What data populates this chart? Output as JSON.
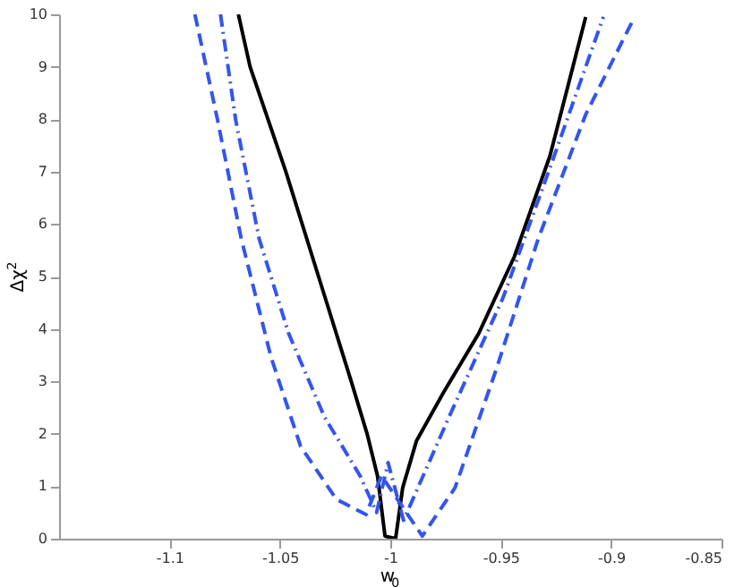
{
  "chart_data": {
    "type": "line",
    "xlabel": "w$_{0}$",
    "ylabel": "Δχ$^{2}$",
    "xlim": [
      -1.15,
      -0.85
    ],
    "ylim": [
      0,
      10
    ],
    "xticks": [
      {
        "value": -1.1,
        "label": "-1.1"
      },
      {
        "value": -1.05,
        "label": "-1.05"
      },
      {
        "value": -1,
        "label": "-1"
      },
      {
        "value": -0.95,
        "label": "-0.95"
      },
      {
        "value": -0.9,
        "label": "-0.9"
      },
      {
        "value": -0.85,
        "label": "-0.85"
      }
    ],
    "yticks": [
      0,
      1,
      2,
      3,
      4,
      5,
      6,
      7,
      8,
      9,
      10
    ],
    "grid": false,
    "series": [
      {
        "color": "#000000",
        "line_style": "solid",
        "x": [
          -1.0688,
          -1.0635,
          -1.0473,
          -1.0325,
          -1.0177,
          -1.0105,
          -1.0058,
          -1.0024,
          -0.9976,
          -0.9944,
          -0.9881,
          -0.976,
          -0.96,
          -0.9438,
          -0.9277,
          -0.9115
        ],
        "values": [
          10,
          9,
          7,
          5,
          3,
          2,
          1.2,
          0.05,
          0,
          0.97,
          1.87,
          2.78,
          3.91,
          5.38,
          7.3,
          9.95
        ]
      },
      {
        "color": "#3355ee",
        "line_style": "dashdot",
        "x": [
          -1.0769,
          -1.07,
          -1.0594,
          -1.046,
          -1.0298,
          -1.0137,
          -1.0062,
          -1.001,
          -0.994,
          -0.9734,
          -0.949,
          -0.9277,
          -0.9035
        ],
        "values": [
          10,
          7.98,
          5.72,
          3.91,
          2.32,
          1.2,
          0.5,
          1.45,
          0.35,
          2.32,
          4.59,
          7.07,
          9.95
        ]
      },
      {
        "color": "#3355ee",
        "line_style": "dashed",
        "x": [
          -1.0885,
          -1.0782,
          -1.0675,
          -1.054,
          -1.0406,
          -1.0244,
          -1.011,
          -1.004,
          -0.9855,
          -0.9707,
          -0.952,
          -0.933,
          -0.9115,
          -0.89
        ],
        "values": [
          10,
          7.98,
          5.72,
          3.46,
          1.76,
          0.75,
          0.46,
          1.2,
          0.05,
          0.97,
          3.23,
          5.72,
          8.09,
          9.9
        ]
      }
    ]
  }
}
